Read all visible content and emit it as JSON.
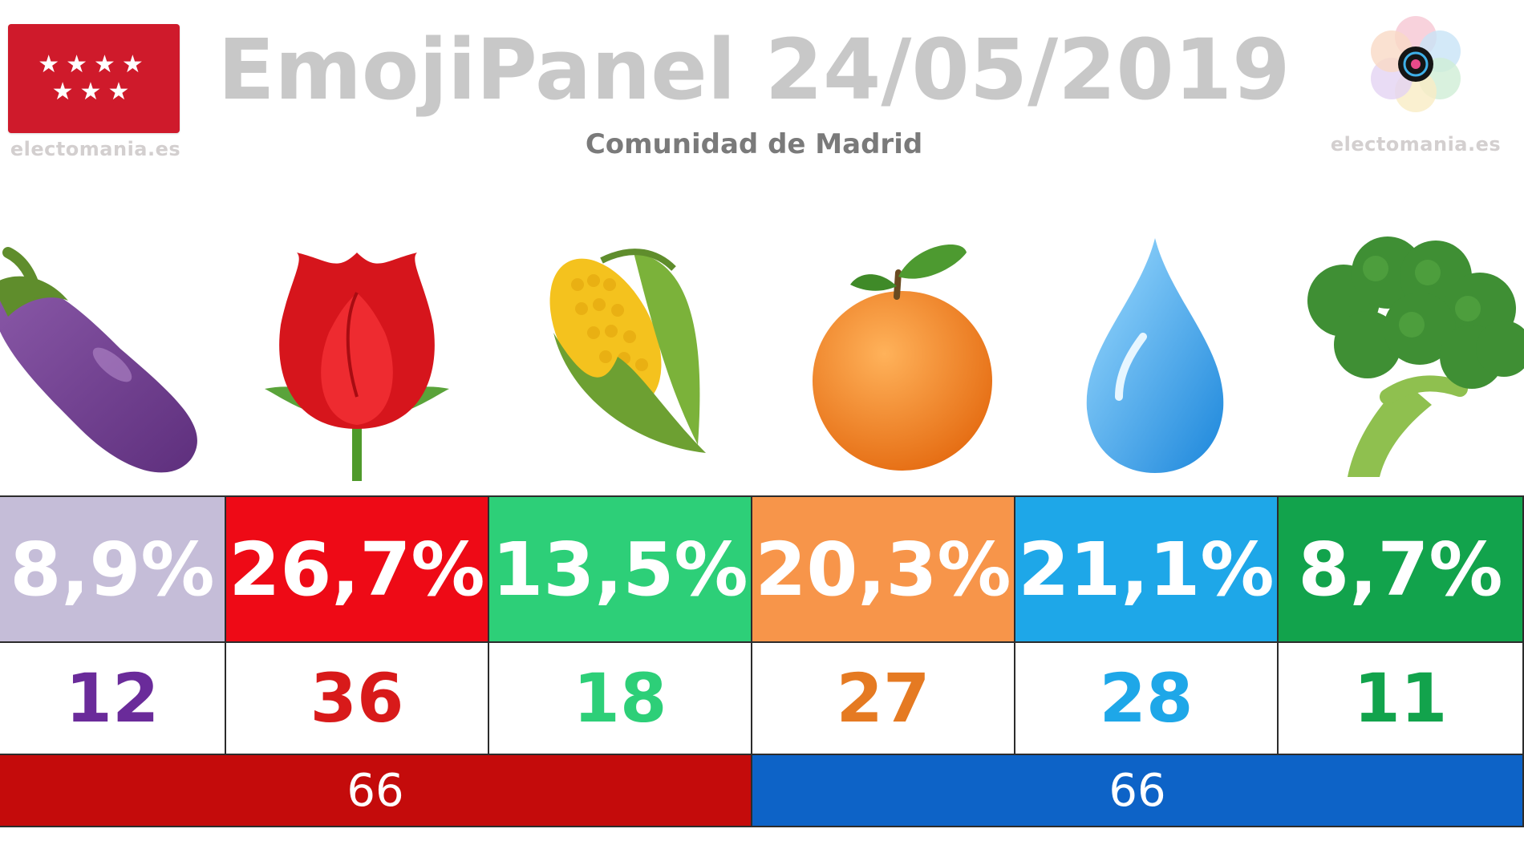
{
  "header": {
    "title": "EmojiPanel 24/05/2019",
    "subtitle": "Comunidad de Madrid",
    "brand_left": "electomania.es",
    "brand_right": "electomania.es"
  },
  "icons": {
    "flag": "madrid-flag-icon",
    "star": "★",
    "logo": "electomania-logo-icon"
  },
  "chart_data": {
    "type": "table",
    "categories": [
      "eggplant",
      "rose",
      "corn",
      "orange",
      "droplet",
      "broccoli"
    ],
    "series": [
      {
        "values": [
          8.9,
          26.7,
          13.5,
          20.3,
          21.1,
          8.7
        ],
        "display": [
          "8,9%",
          "26,7%",
          "13,5%",
          "20,3%",
          "21,1%",
          "8,7%"
        ]
      },
      {
        "values": [
          12,
          36,
          18,
          27,
          28,
          11
        ],
        "display": [
          "12",
          "36",
          "18",
          "27",
          "28",
          "11"
        ]
      }
    ],
    "colors": [
      "#c5bdd8",
      "#ee0a16",
      "#2dcf78",
      "#f7954a",
      "#1ea7e8",
      "#12a34c"
    ],
    "seat_colors": [
      "#6a2b9a",
      "#d81a1a",
      "#2dcf78",
      "#e57a22",
      "#1ea7e8",
      "#12a34c"
    ],
    "blocs": [
      {
        "members": [
          0,
          1,
          2
        ],
        "value": 66,
        "display": "66",
        "color": "#c40b0b"
      },
      {
        "members": [
          3,
          4,
          5
        ],
        "value": 66,
        "display": "66",
        "color": "#0d63c7"
      }
    ]
  }
}
